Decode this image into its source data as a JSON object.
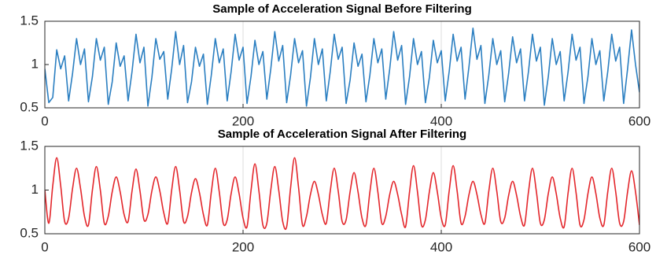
{
  "chart_data": [
    {
      "type": "line",
      "title": "Sample of Acceleration Signal Before Filtering",
      "color": "#2b7fc1",
      "smooth": false,
      "xlim": [
        0,
        600
      ],
      "ylim": [
        0.5,
        1.5
      ],
      "xticks": [
        0,
        200,
        400,
        600
      ],
      "yticks": [
        0.5,
        1,
        1.5
      ],
      "grid": "x",
      "x": [
        0,
        4,
        8,
        12,
        16,
        20,
        24,
        28,
        32,
        36,
        40,
        44,
        48,
        52,
        56,
        60,
        64,
        68,
        72,
        76,
        80,
        84,
        88,
        92,
        96,
        100,
        104,
        108,
        112,
        116,
        120,
        124,
        128,
        132,
        136,
        140,
        144,
        148,
        152,
        156,
        160,
        164,
        168,
        172,
        176,
        180,
        184,
        188,
        192,
        196,
        200,
        204,
        208,
        212,
        216,
        220,
        224,
        228,
        232,
        236,
        240,
        244,
        248,
        252,
        256,
        260,
        264,
        268,
        272,
        276,
        280,
        284,
        288,
        292,
        296,
        300,
        304,
        308,
        312,
        316,
        320,
        324,
        328,
        332,
        336,
        340,
        344,
        348,
        352,
        356,
        360,
        364,
        368,
        372,
        376,
        380,
        384,
        388,
        392,
        396,
        400,
        404,
        408,
        412,
        416,
        420,
        424,
        428,
        432,
        436,
        440,
        444,
        448,
        452,
        456,
        460,
        464,
        468,
        472,
        476,
        480,
        484,
        488,
        492,
        496,
        500,
        504,
        508,
        512,
        516,
        520,
        524,
        528,
        532,
        536,
        540,
        544,
        548,
        552,
        556,
        560,
        564,
        568,
        572,
        576,
        580,
        584,
        588,
        592,
        596,
        600
      ],
      "values": [
        0.95,
        0.56,
        0.62,
        1.17,
        0.95,
        1.1,
        0.58,
        0.9,
        1.3,
        1.0,
        1.18,
        0.57,
        0.86,
        1.3,
        1.05,
        1.2,
        0.54,
        0.8,
        1.25,
        0.98,
        1.1,
        0.58,
        0.92,
        1.35,
        1.02,
        1.2,
        0.52,
        0.85,
        1.3,
        1.06,
        1.15,
        0.6,
        0.95,
        1.38,
        1.0,
        1.22,
        0.56,
        0.8,
        1.2,
        0.98,
        1.12,
        0.54,
        0.88,
        1.3,
        1.02,
        1.18,
        0.58,
        0.92,
        1.35,
        1.05,
        1.2,
        0.55,
        0.86,
        1.28,
        1.0,
        1.15,
        0.6,
        0.95,
        1.38,
        1.04,
        1.22,
        0.56,
        0.88,
        1.3,
        1.02,
        1.16,
        0.52,
        0.85,
        1.3,
        1.0,
        1.18,
        0.58,
        0.92,
        1.35,
        1.06,
        1.2,
        0.55,
        0.82,
        1.25,
        0.98,
        1.12,
        0.57,
        0.88,
        1.3,
        1.02,
        1.18,
        0.6,
        0.95,
        1.38,
        1.05,
        1.22,
        0.54,
        0.86,
        1.3,
        1.0,
        1.15,
        0.56,
        0.85,
        1.28,
        1.02,
        1.16,
        0.58,
        0.92,
        1.35,
        1.04,
        1.2,
        0.6,
        0.98,
        1.42,
        1.06,
        1.22,
        0.55,
        0.88,
        1.3,
        1.0,
        1.16,
        0.57,
        0.9,
        1.32,
        1.02,
        1.18,
        0.58,
        0.92,
        1.35,
        1.04,
        1.2,
        0.53,
        0.86,
        1.3,
        1.0,
        1.15,
        0.58,
        0.92,
        1.35,
        1.05,
        1.2,
        0.55,
        0.86,
        1.3,
        1.0,
        1.16,
        0.58,
        0.92,
        1.35,
        1.04,
        1.2,
        0.55,
        0.95,
        1.4,
        1.0,
        0.68
      ]
    },
    {
      "type": "line",
      "title": "Sample of Acceleration Signal After Filtering",
      "color": "#e3262b",
      "smooth": true,
      "xlim": [
        0,
        600
      ],
      "ylim": [
        0.5,
        1.5
      ],
      "xticks": [
        0,
        200,
        400,
        600
      ],
      "yticks": [
        0.5,
        1,
        1.5
      ],
      "grid": "x",
      "x": [
        0,
        4,
        8,
        12,
        16,
        20,
        24,
        28,
        32,
        36,
        40,
        44,
        48,
        52,
        56,
        60,
        64,
        68,
        72,
        76,
        80,
        84,
        88,
        92,
        96,
        100,
        104,
        108,
        112,
        116,
        120,
        124,
        128,
        132,
        136,
        140,
        144,
        148,
        152,
        156,
        160,
        164,
        168,
        172,
        176,
        180,
        184,
        188,
        192,
        196,
        200,
        204,
        208,
        212,
        216,
        220,
        224,
        228,
        232,
        236,
        240,
        244,
        248,
        252,
        256,
        260,
        264,
        268,
        272,
        276,
        280,
        284,
        288,
        292,
        296,
        300,
        304,
        308,
        312,
        316,
        320,
        324,
        328,
        332,
        336,
        340,
        344,
        348,
        352,
        356,
        360,
        364,
        368,
        372,
        376,
        380,
        384,
        388,
        392,
        396,
        400,
        404,
        408,
        412,
        416,
        420,
        424,
        428,
        432,
        436,
        440,
        444,
        448,
        452,
        456,
        460,
        464,
        468,
        472,
        476,
        480,
        484,
        488,
        492,
        496,
        500,
        504,
        508,
        512,
        516,
        520,
        524,
        528,
        532,
        536,
        540,
        544,
        548,
        552,
        556,
        560,
        564,
        568,
        572,
        576,
        580,
        584,
        588,
        592,
        596,
        600
      ],
      "values": [
        1.0,
        0.62,
        1.05,
        1.37,
        1.05,
        0.64,
        0.68,
        1.02,
        1.25,
        1.02,
        0.7,
        0.6,
        1.0,
        1.27,
        1.0,
        0.62,
        0.7,
        0.98,
        1.15,
        0.98,
        0.72,
        0.64,
        0.99,
        1.24,
        0.99,
        0.66,
        0.72,
        0.99,
        1.15,
        0.99,
        0.74,
        0.62,
        1.0,
        1.27,
        1.0,
        0.64,
        0.7,
        0.97,
        1.13,
        0.97,
        0.72,
        0.6,
        0.98,
        1.25,
        0.98,
        0.62,
        0.66,
        0.96,
        1.15,
        0.96,
        0.68,
        0.58,
        0.99,
        1.3,
        0.99,
        0.6,
        0.62,
        1.0,
        1.27,
        1.0,
        0.64,
        0.58,
        1.03,
        1.37,
        1.03,
        0.6,
        0.7,
        0.95,
        1.1,
        0.95,
        0.72,
        0.62,
        0.99,
        1.25,
        0.99,
        0.64,
        0.66,
        0.98,
        1.2,
        0.98,
        0.68,
        0.6,
        0.98,
        1.25,
        0.98,
        0.62,
        0.7,
        0.95,
        1.1,
        0.95,
        0.72,
        0.58,
        0.98,
        1.28,
        0.98,
        0.6,
        0.66,
        0.98,
        1.2,
        0.98,
        0.68,
        0.6,
        0.99,
        1.28,
        0.99,
        0.62,
        0.7,
        0.95,
        1.1,
        0.95,
        0.72,
        0.62,
        0.99,
        1.25,
        0.99,
        0.64,
        0.68,
        0.94,
        1.1,
        0.94,
        0.7,
        0.6,
        0.98,
        1.25,
        0.98,
        0.62,
        0.66,
        0.96,
        1.15,
        0.96,
        0.68,
        0.58,
        0.97,
        1.25,
        0.97,
        0.6,
        0.66,
        0.96,
        1.15,
        0.96,
        0.68,
        0.6,
        0.98,
        1.25,
        0.98,
        0.62,
        0.64,
        0.98,
        1.22,
        0.98,
        0.6
      ]
    }
  ]
}
